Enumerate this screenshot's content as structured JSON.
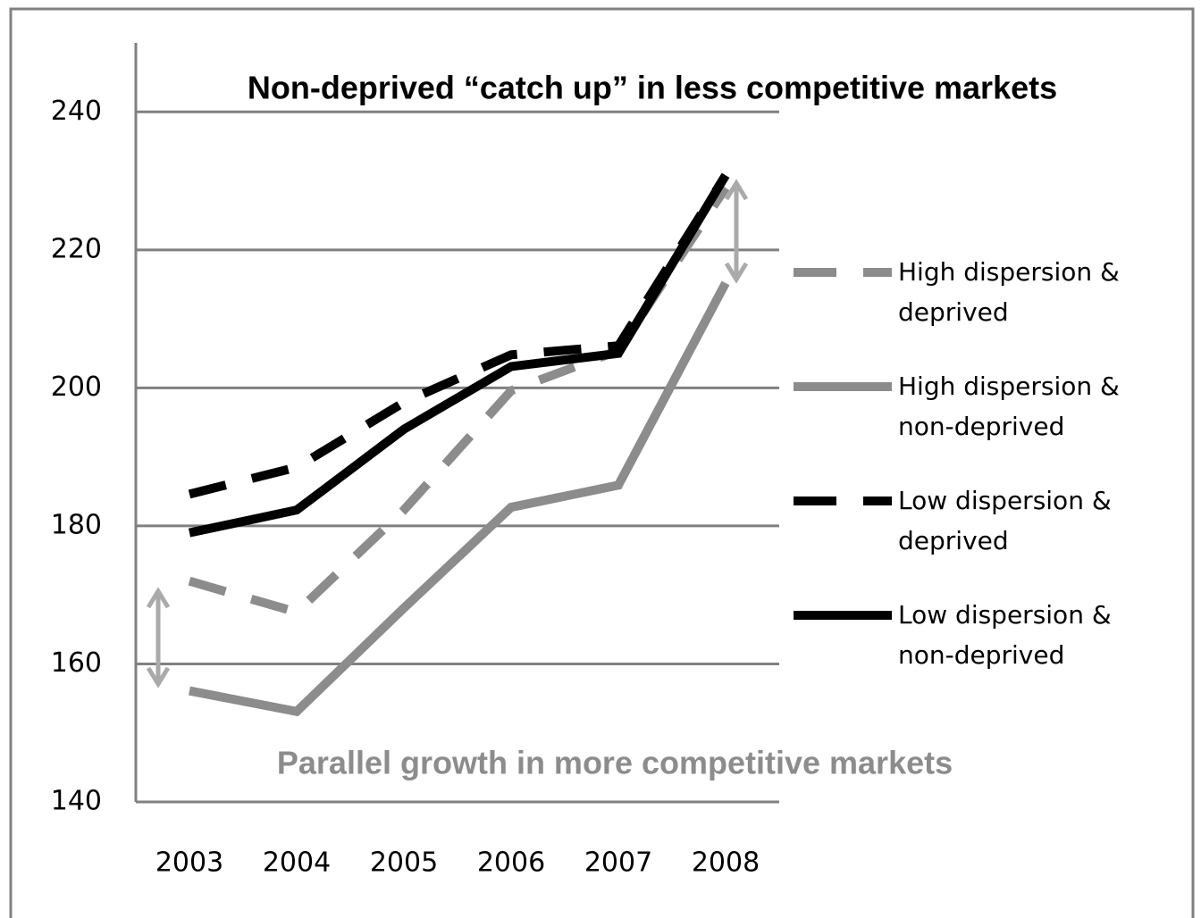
{
  "chart_data": {
    "type": "line",
    "annotations": [
      "Non-deprived “catch up” in less competitive markets",
      "Parallel growth in more competitive markets"
    ],
    "categories": [
      "2003",
      "2004",
      "2005",
      "2006",
      "2007",
      "2008"
    ],
    "series": [
      {
        "name": "High dispersion & deprived",
        "color": "#8c8c8c",
        "style": "dashed",
        "values": [
          172,
          167.5,
          182.3,
          199.6,
          205.4,
          229
        ]
      },
      {
        "name": "High dispersion & non-deprived",
        "color": "#8c8c8c",
        "style": "solid",
        "values": [
          156.1,
          153.1,
          168.1,
          182.7,
          185.9,
          215.2
        ]
      },
      {
        "name": "Low dispersion & deprived",
        "color": "#000000",
        "style": "dashed",
        "values": [
          184.6,
          188.5,
          197.9,
          204.8,
          206.1,
          230.8
        ]
      },
      {
        "name": "Low dispersion & non-deprived",
        "color": "#000000",
        "style": "solid",
        "values": [
          179,
          182.3,
          194,
          203.1,
          205,
          230.8
        ]
      }
    ],
    "ylim": [
      140,
      250
    ],
    "yticks": [
      140,
      160,
      180,
      200,
      220,
      240
    ],
    "grid": true,
    "legend": "right"
  }
}
